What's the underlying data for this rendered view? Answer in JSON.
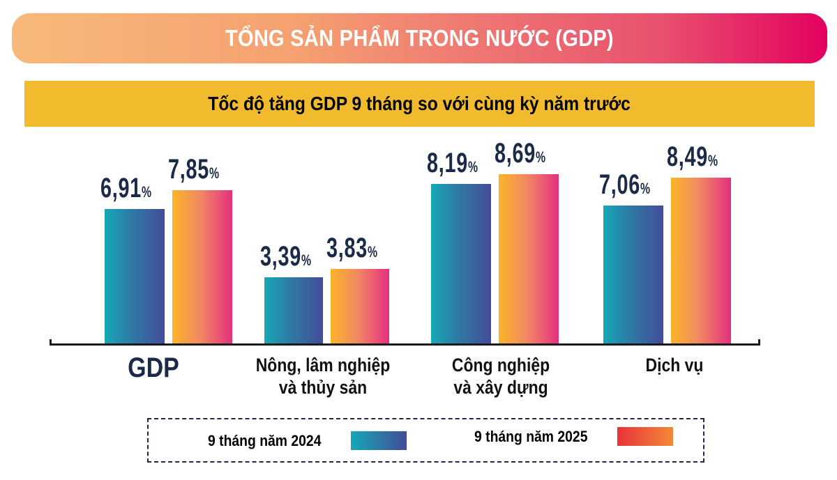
{
  "header": {
    "title": "TỔNG SẢN PHẨM TRONG NƯỚC (GDP)"
  },
  "subtitle": "Tốc độ tăng GDP 9 tháng so với cùng kỳ năm trước",
  "colors": {
    "header_gradient": [
      "#f8b97a",
      "#e3005f"
    ],
    "subtitle_bg": "#f2bb2e",
    "series_2024": [
      "#16a8b6",
      "#444c9a"
    ],
    "series_2025": [
      "#fbb528",
      "#e4307f"
    ],
    "label_color": "#1b2a47"
  },
  "categories": [
    {
      "label": "GDP",
      "v2024": "6,91",
      "v2025": "7,85"
    },
    {
      "label": "Nông, lâm nghiệp",
      "label2": "và thủy sản",
      "v2024": "3,39",
      "v2025": "3,83"
    },
    {
      "label": "Công nghiệp",
      "label2": "và xây dựng",
      "v2024": "8,19",
      "v2025": "8,69"
    },
    {
      "label": "Dịch vụ",
      "v2024": "7,06",
      "v2025": "8,49"
    }
  ],
  "pct": "%",
  "legend": {
    "s2024": "9 tháng năm 2024",
    "s2025": "9 tháng năm 2025"
  },
  "chart_data": {
    "type": "bar",
    "title": "Tốc độ tăng GDP 9 tháng so với cùng kỳ năm trước",
    "supertitle": "TỔNG SẢN PHẨM TRONG NƯỚC (GDP)",
    "categories": [
      "GDP",
      "Nông, lâm nghiệp và thủy sản",
      "Công nghiệp và xây dựng",
      "Dịch vụ"
    ],
    "series": [
      {
        "name": "9 tháng năm 2024",
        "values": [
          6.91,
          3.39,
          8.19,
          7.06
        ]
      },
      {
        "name": "9 tháng năm 2025",
        "values": [
          7.85,
          3.83,
          8.69,
          8.49
        ]
      }
    ],
    "unit": "%",
    "xlabel": "",
    "ylabel": "",
    "grid": false,
    "legend_position": "bottom",
    "data_labels": true
  }
}
